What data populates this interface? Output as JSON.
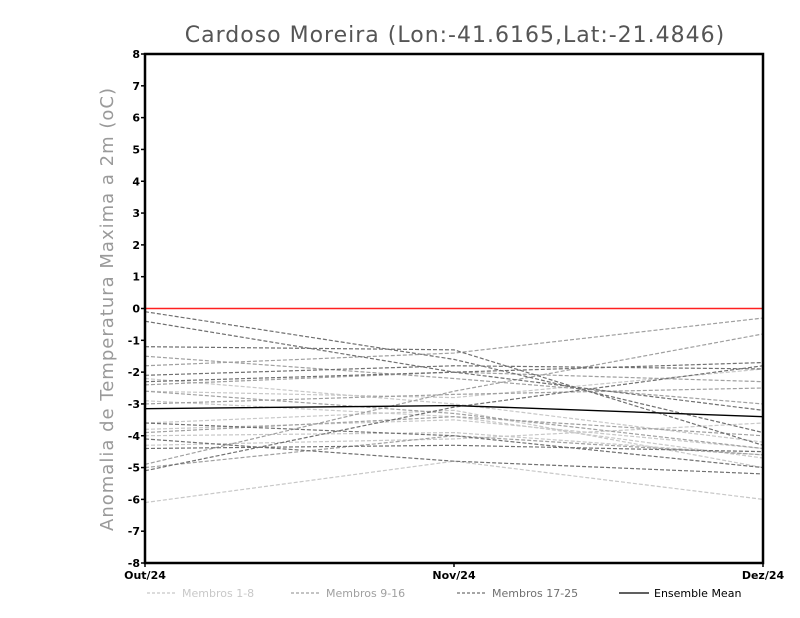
{
  "chart_data": {
    "type": "line",
    "title": "Cardoso Moreira (Lon:-41.6165,Lat:-21.4846)",
    "xlabel": "",
    "ylabel": "Anomalia de Temperatura Maxima a 2m (oC)",
    "x": [
      "Out/24",
      "Nov/24",
      "Dez/24"
    ],
    "ylim": [
      -8,
      8
    ],
    "yticks": [
      "8",
      "7",
      "6",
      "5",
      "4",
      "3",
      "2",
      "1",
      "0",
      "-1",
      "-2",
      "-3",
      "-4",
      "-5",
      "-6",
      "-7",
      "-8"
    ],
    "grid": false,
    "reference_line": {
      "value": 0,
      "color": "#ff2020"
    },
    "legend": {
      "placement": "bottom"
    },
    "series": [
      {
        "name": "Membros 1-8",
        "color": "#c8c8c8",
        "dash": "dashed",
        "members": [
          [
            -6.1,
            -4.8,
            -6.0
          ],
          [
            -4.0,
            -3.9,
            -4.6
          ],
          [
            -2.6,
            -2.8,
            -1.9
          ],
          [
            -3.8,
            -3.5,
            -4.4
          ],
          [
            -2.2,
            -3.0,
            -4.2
          ],
          [
            -4.3,
            -4.1,
            -3.6
          ],
          [
            -2.9,
            -3.4,
            -4.7
          ],
          [
            -3.6,
            -3.2,
            -5.0
          ]
        ]
      },
      {
        "name": "Membros 9-16",
        "color": "#a0a0a0",
        "dash": "dashed",
        "members": [
          [
            -1.8,
            -1.4,
            -0.3
          ],
          [
            -2.4,
            -2.0,
            -2.3
          ],
          [
            -4.9,
            -2.6,
            -0.8
          ],
          [
            -3.9,
            -3.4,
            -4.0
          ],
          [
            -2.6,
            -3.3,
            -4.4
          ],
          [
            -1.5,
            -2.2,
            -3.0
          ],
          [
            -5.0,
            -4.0,
            -4.6
          ],
          [
            -3.0,
            -2.7,
            -2.5
          ]
        ]
      },
      {
        "name": "Membros 17-25",
        "color": "#707070",
        "dash": "dashed",
        "members": [
          [
            -0.1,
            -1.6,
            -3.9
          ],
          [
            -0.4,
            -2.0,
            -3.2
          ],
          [
            -1.2,
            -1.3,
            -4.3
          ],
          [
            -2.1,
            -1.8,
            -1.9
          ],
          [
            -2.3,
            -2.0,
            -1.7
          ],
          [
            -3.6,
            -4.0,
            -5.0
          ],
          [
            -4.4,
            -4.3,
            -4.5
          ],
          [
            -5.1,
            -3.1,
            -1.8
          ],
          [
            -4.1,
            -4.8,
            -5.2
          ]
        ]
      },
      {
        "name": "Ensemble Mean",
        "color": "#000000",
        "dash": "solid",
        "members": [
          [
            -3.15,
            -3.05,
            -3.4
          ]
        ]
      }
    ]
  }
}
